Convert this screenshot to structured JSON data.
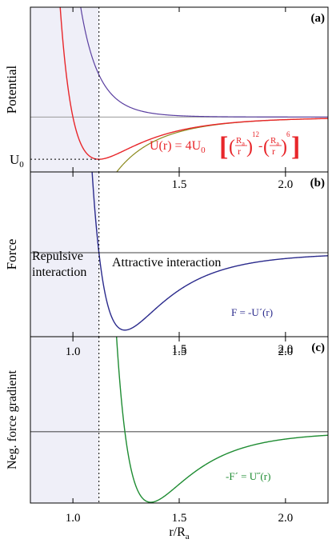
{
  "chart_data": [
    {
      "panel": "a",
      "type": "line",
      "panel_label": "(a)",
      "ylabel": "Potential",
      "xlim": [
        0.8,
        2.2
      ],
      "ylim": [
        -1.3,
        2.6
      ],
      "x_ticks": [
        1.0,
        1.5,
        2.0
      ],
      "x_tick_labels": [
        "1.0",
        "1.5",
        "2.0"
      ],
      "y_marker_label": "U",
      "y_marker_sub": "0",
      "y_marker_value": -1.0,
      "equilibrium_x": 1.1225,
      "shaded_xlim": [
        0.8,
        1.1225
      ],
      "formula": {
        "lhs": "U(r) = 4U",
        "lhs_sub": "0",
        "frac_num": "R",
        "frac_num_sub": "a",
        "frac_den": "r",
        "exp1": "12",
        "exp2": "6",
        "minus": "-"
      },
      "series": [
        {
          "key": "lj",
          "color": "#e8262a",
          "formula": "4(x^-12 - x^-6)"
        },
        {
          "key": "repulsive",
          "color": "#5a3fa0",
          "formula": "4x^-12"
        },
        {
          "key": "attractive",
          "color": "#8c8a1e",
          "formula": "-4x^-6"
        }
      ]
    },
    {
      "panel": "b",
      "type": "line",
      "panel_label": "(b)",
      "ylabel": "Force",
      "xlim": [
        0.8,
        2.2
      ],
      "ylim": [
        -2.6,
        2.5
      ],
      "x_ticks": [
        1.0,
        1.5,
        2.0
      ],
      "x_tick_labels": [
        "1.0",
        "1.5",
        "2.0"
      ],
      "equilibrium_x": 1.1225,
      "annotations": {
        "repulsive_line1": "Repulsive",
        "repulsive_line2": "interaction",
        "attractive": "Attractive interaction",
        "series_label": "F = -U´(r)"
      },
      "series": [
        {
          "key": "force",
          "color": "#2a2a8c",
          "formula": "-U'(x)"
        }
      ]
    },
    {
      "panel": "c",
      "type": "line",
      "panel_label": "(c)",
      "ylabel": "Neg. force gradient",
      "xlabel": "r/R",
      "xlabel_sub": "a",
      "xlim": [
        0.8,
        2.2
      ],
      "ylim": [
        -6.0,
        8.0
      ],
      "x_ticks": [
        1.0,
        1.5,
        2.0
      ],
      "x_tick_labels": [
        "1.0",
        "1.5",
        "2.0"
      ],
      "equilibrium_x": 1.1225,
      "annotations": {
        "series_label": "-F´ = U˝(r)"
      },
      "series": [
        {
          "key": "neg_gradient",
          "color": "#1e8c32",
          "formula": "U''(x)"
        }
      ]
    }
  ]
}
